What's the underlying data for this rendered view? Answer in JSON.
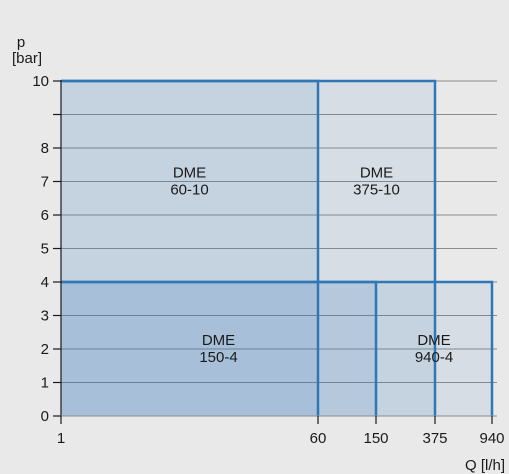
{
  "chart_data": {
    "type": "area",
    "title": "",
    "ylabel_symbol": "p",
    "ylabel_unit": "[bar]",
    "xlabel": "Q [l/h]",
    "x_ticks": [
      {
        "label": "1",
        "value": 1
      },
      {
        "label": "60",
        "value": 60
      },
      {
        "label": "150",
        "value": 150
      },
      {
        "label": "375",
        "value": 375
      },
      {
        "label": "940",
        "value": 940
      }
    ],
    "y_ticks": [
      0,
      1,
      2,
      3,
      4,
      5,
      6,
      7,
      8,
      9,
      10
    ],
    "y_tick_labels_shown": [
      0,
      1,
      2,
      3,
      4,
      5,
      6,
      7,
      8,
      10
    ],
    "ylim": [
      0,
      10
    ],
    "xlim": [
      1,
      940
    ],
    "grid": true,
    "regions": [
      {
        "name_line1": "DME",
        "name_line2": "150-4",
        "q_max": 150,
        "p_max": 4
      },
      {
        "name_line1": "DME",
        "name_line2": "940-4",
        "q_max": 940,
        "p_max": 4
      },
      {
        "name_line1": "DME",
        "name_line2": "60-10",
        "q_max": 60,
        "p_max": 10
      },
      {
        "name_line1": "DME",
        "name_line2": "375-10",
        "q_max": 375,
        "p_max": 10
      }
    ],
    "colors": {
      "fill": "#2f73b6",
      "outline": "#2f77b5",
      "grid": "#8c8c8c",
      "background": "#e9e9ea"
    }
  }
}
